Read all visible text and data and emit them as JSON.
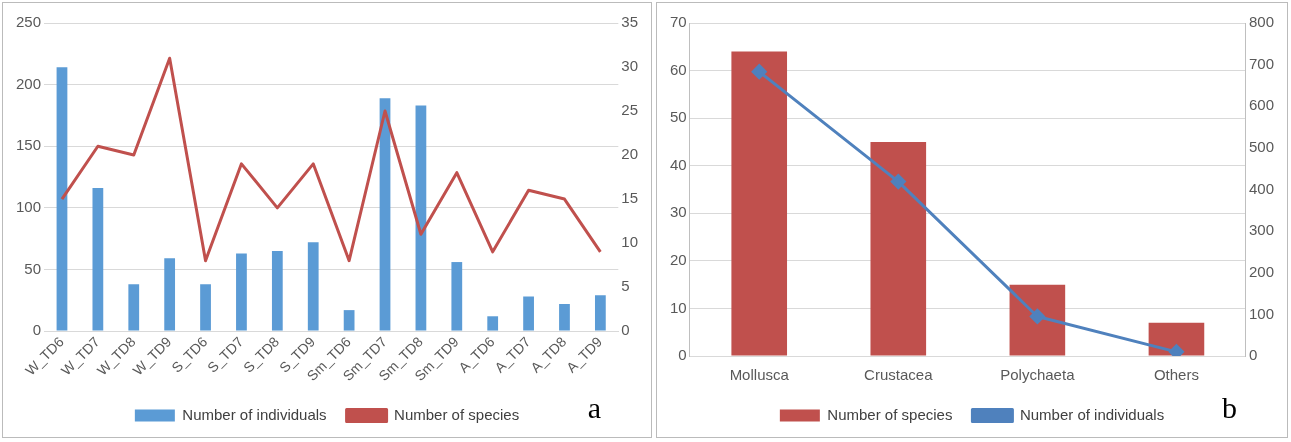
{
  "chart_data": [
    {
      "type": "bar",
      "categories": [
        "W_TD6",
        "W_TD7",
        "W_TD8",
        "W_TD9",
        "S_TD6",
        "S_TD7",
        "S_TD8",
        "S_TD9",
        "Sm_TD6",
        "Sm_TD7",
        "Sm_TD8",
        "Sm_TD9",
        "A_TD6",
        "A_TD7",
        "A_TD8",
        "A_TD9"
      ],
      "series": [
        {
          "name": "Number of individuals",
          "color": "#5b9bd5",
          "values": [
            214,
            116,
            38,
            59,
            38,
            63,
            65,
            72,
            17,
            189,
            183,
            56,
            12,
            28,
            22,
            29
          ]
        },
        {
          "name": "Number of species",
          "type": "line",
          "axis": "y2",
          "color": "#c0504d",
          "values": [
            15,
            21,
            20,
            31,
            8,
            19,
            14,
            19,
            8,
            25,
            11,
            18,
            9,
            16,
            15,
            9
          ]
        }
      ],
      "ylim": [
        0,
        250
      ],
      "yticks": [
        0,
        50,
        100,
        150,
        200,
        250
      ],
      "y2lim": [
        0,
        35
      ],
      "y2ticks": [
        0,
        5,
        10,
        15,
        20,
        25,
        30,
        35
      ],
      "grid": "y",
      "legend": "bottom",
      "annotations": [
        "a"
      ]
    },
    {
      "type": "bar",
      "categories": [
        "Mollusca",
        "Crustacea",
        "Polychaeta",
        "Others"
      ],
      "series": [
        {
          "name": "Number of species",
          "color": "#c0504d",
          "values": [
            64,
            45,
            15,
            7
          ]
        },
        {
          "name": "Number of individuals",
          "type": "line",
          "axis": "y2",
          "color": "#4f81bd",
          "marker": "diamond",
          "values": [
            683,
            419,
            95,
            10
          ]
        }
      ],
      "ylim": [
        0,
        70
      ],
      "yticks": [
        0,
        10,
        20,
        30,
        40,
        50,
        60,
        70
      ],
      "y2lim": [
        0,
        800
      ],
      "y2ticks": [
        0,
        100,
        200,
        300,
        400,
        500,
        600,
        700,
        800
      ],
      "grid": "y",
      "legend": "bottom",
      "annotations": [
        "b"
      ]
    }
  ]
}
